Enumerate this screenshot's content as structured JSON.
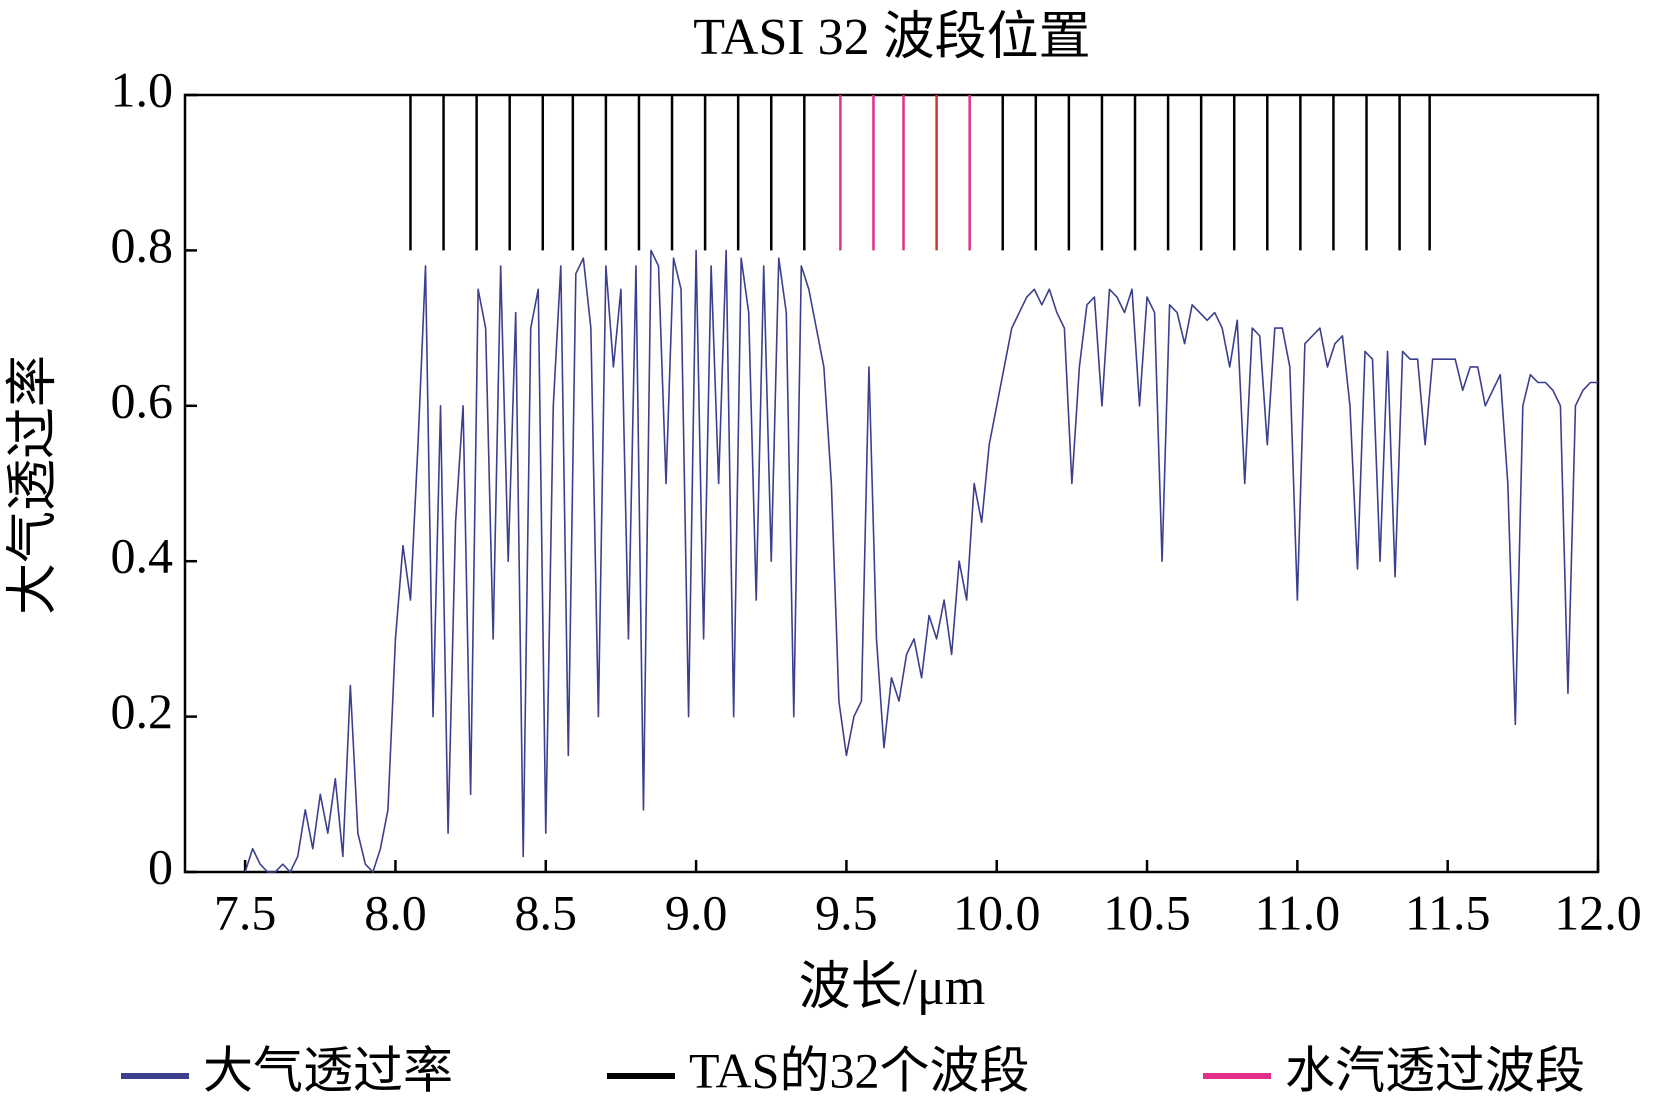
{
  "chart_data": {
    "type": "line",
    "title": "TASI 32 波段位置",
    "x_label": "波长/μm",
    "y_label": "大气透过率",
    "xlim": [
      7.3,
      12.0
    ],
    "ylim": [
      0,
      1
    ],
    "xticks": [
      7.5,
      {
        "value": 8,
        "label": "8.0"
      },
      8.5,
      {
        "value": 9,
        "label": "9.0"
      },
      9.5,
      {
        "value": 10,
        "label": "10.0"
      },
      10.5,
      {
        "value": 11,
        "label": "11.0"
      },
      11.5,
      {
        "value": 12,
        "label": "12.0"
      }
    ],
    "yticks": [
      0,
      0.2,
      0.4,
      0.6,
      0.8,
      {
        "value": 1,
        "label": "1.0"
      }
    ],
    "legend": "bottom",
    "series": [
      {
        "name": "大气透过率",
        "color": "#3c3f8e",
        "x": [
          7.5,
          7.525,
          7.55,
          7.575,
          7.6,
          7.625,
          7.65,
          7.675,
          7.7,
          7.725,
          7.75,
          7.775,
          7.8,
          7.825,
          7.85,
          7.875,
          7.9,
          7.925,
          7.95,
          7.975,
          8.0,
          8.025,
          8.05,
          8.075,
          8.1,
          8.125,
          8.15,
          8.175,
          8.2,
          8.225,
          8.25,
          8.275,
          8.3,
          8.325,
          8.35,
          8.375,
          8.4,
          8.425,
          8.45,
          8.475,
          8.5,
          8.525,
          8.55,
          8.575,
          8.6,
          8.625,
          8.65,
          8.675,
          8.7,
          8.725,
          8.75,
          8.775,
          8.8,
          8.825,
          8.85,
          8.875,
          8.9,
          8.925,
          8.95,
          8.975,
          9.0,
          9.025,
          9.05,
          9.075,
          9.1,
          9.125,
          9.15,
          9.175,
          9.2,
          9.225,
          9.25,
          9.275,
          9.3,
          9.325,
          9.35,
          9.375,
          9.4,
          9.425,
          9.45,
          9.475,
          9.5,
          9.525,
          9.55,
          9.575,
          9.6,
          9.625,
          9.65,
          9.675,
          9.7,
          9.725,
          9.75,
          9.775,
          9.8,
          9.825,
          9.85,
          9.875,
          9.9,
          9.925,
          9.95,
          9.975,
          10.0,
          10.025,
          10.05,
          10.075,
          10.1,
          10.125,
          10.15,
          10.175,
          10.2,
          10.225,
          10.25,
          10.275,
          10.3,
          10.325,
          10.35,
          10.375,
          10.4,
          10.425,
          10.45,
          10.475,
          10.5,
          10.525,
          10.55,
          10.575,
          10.6,
          10.625,
          10.65,
          10.675,
          10.7,
          10.725,
          10.75,
          10.775,
          10.8,
          10.825,
          10.85,
          10.875,
          10.9,
          10.925,
          10.95,
          10.975,
          11.0,
          11.025,
          11.05,
          11.075,
          11.1,
          11.125,
          11.15,
          11.175,
          11.2,
          11.225,
          11.25,
          11.275,
          11.3,
          11.325,
          11.35,
          11.375,
          11.4,
          11.425,
          11.45,
          11.475,
          11.5,
          11.525,
          11.55,
          11.575,
          11.6,
          11.625,
          11.65,
          11.675,
          11.7,
          11.725,
          11.75,
          11.775,
          11.8,
          11.825,
          11.85,
          11.875,
          11.9,
          11.925,
          11.95,
          11.975,
          12.0
        ],
        "values": [
          0,
          0.03,
          0.01,
          0,
          0,
          0.01,
          0,
          0.02,
          0.08,
          0.03,
          0.1,
          0.05,
          0.12,
          0.02,
          0.24,
          0.05,
          0.01,
          0,
          0.03,
          0.08,
          0.3,
          0.42,
          0.35,
          0.55,
          0.78,
          0.2,
          0.6,
          0.05,
          0.45,
          0.6,
          0.1,
          0.75,
          0.7,
          0.3,
          0.78,
          0.4,
          0.72,
          0.02,
          0.7,
          0.75,
          0.05,
          0.6,
          0.78,
          0.15,
          0.77,
          0.79,
          0.7,
          0.2,
          0.78,
          0.65,
          0.75,
          0.3,
          0.78,
          0.08,
          0.8,
          0.78,
          0.5,
          0.79,
          0.75,
          0.2,
          0.8,
          0.3,
          0.78,
          0.5,
          0.8,
          0.2,
          0.79,
          0.72,
          0.35,
          0.78,
          0.4,
          0.79,
          0.72,
          0.2,
          0.78,
          0.75,
          0.7,
          0.65,
          0.5,
          0.22,
          0.15,
          0.2,
          0.22,
          0.65,
          0.3,
          0.16,
          0.25,
          0.22,
          0.28,
          0.3,
          0.25,
          0.33,
          0.3,
          0.35,
          0.28,
          0.4,
          0.35,
          0.5,
          0.45,
          0.55,
          0.6,
          0.65,
          0.7,
          0.72,
          0.74,
          0.75,
          0.73,
          0.75,
          0.72,
          0.7,
          0.5,
          0.65,
          0.73,
          0.74,
          0.6,
          0.75,
          0.74,
          0.72,
          0.75,
          0.6,
          0.74,
          0.72,
          0.4,
          0.73,
          0.72,
          0.68,
          0.73,
          0.72,
          0.71,
          0.72,
          0.7,
          0.65,
          0.71,
          0.5,
          0.7,
          0.69,
          0.55,
          0.7,
          0.7,
          0.65,
          0.35,
          0.68,
          0.69,
          0.7,
          0.65,
          0.68,
          0.69,
          0.6,
          0.39,
          0.67,
          0.66,
          0.4,
          0.67,
          0.38,
          0.67,
          0.66,
          0.66,
          0.55,
          0.66,
          0.66,
          0.66,
          0.66,
          0.62,
          0.65,
          0.65,
          0.6,
          0.62,
          0.64,
          0.5,
          0.19,
          0.6,
          0.64,
          0.63,
          0.63,
          0.62,
          0.6,
          0.23,
          0.6,
          0.62,
          0.63,
          0.63
        ]
      },
      {
        "name": "TAS的32个波段",
        "color": "#000000",
        "span": [
          0.8,
          1
        ],
        "x": [
          8.05,
          8.16,
          8.27,
          8.38,
          8.49,
          8.59,
          8.7,
          8.81,
          8.92,
          9.03,
          9.14,
          9.25,
          9.36,
          10.02,
          10.13,
          10.24,
          10.35,
          10.46,
          10.57,
          10.68,
          10.79,
          10.9,
          11.01,
          11.12,
          11.23,
          11.34,
          11.44
        ]
      },
      {
        "name": "水汽透过波段",
        "color": "#e0308a",
        "span": [
          0.8,
          1
        ],
        "colors": [
          "#e0308a",
          "#e0308a",
          "#e0308a",
          "#d0342c",
          "#e0308a"
        ],
        "x": [
          9.48,
          9.59,
          9.69,
          9.8,
          9.91
        ]
      }
    ]
  }
}
